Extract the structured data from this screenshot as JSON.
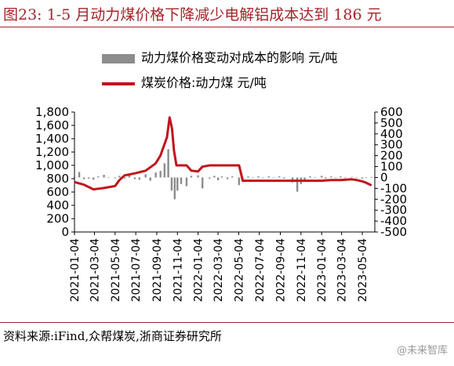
{
  "header": {
    "title": "图23:  1-5 月动力煤价格下降减少电解铝成本达到 186 元"
  },
  "footer": {
    "source": "资料来源:iFind,众帮煤炭,浙商证券研究所",
    "watermark": "@未来智库"
  },
  "colors": {
    "bar": "#8c8c8c",
    "line": "#c0141c",
    "title": "#a6242a"
  },
  "chart_data": {
    "type": "line",
    "series": [
      {
        "name": "动力煤价格变动对成本的影响 元/吨",
        "kind": "bar",
        "axis": "right",
        "x": [
          "2021-01-04",
          "2021-01-18",
          "2021-02-01",
          "2021-02-15",
          "2021-03-01",
          "2021-03-15",
          "2021-04-01",
          "2021-04-15",
          "2021-05-04",
          "2021-05-17",
          "2021-06-01",
          "2021-06-15",
          "2021-07-01",
          "2021-07-15",
          "2021-08-02",
          "2021-08-16",
          "2021-09-01",
          "2021-09-15",
          "2021-09-27",
          "2021-10-08",
          "2021-10-18",
          "2021-10-27",
          "2021-11-04",
          "2021-11-15",
          "2021-12-01",
          "2021-12-15",
          "2022-01-04",
          "2022-01-17",
          "2022-02-07",
          "2022-02-21",
          "2022-03-04",
          "2022-03-15",
          "2022-04-01",
          "2022-04-15",
          "2022-05-05",
          "2022-05-16",
          "2022-06-01",
          "2022-06-15",
          "2022-07-01",
          "2022-07-15",
          "2022-08-01",
          "2022-08-15",
          "2022-09-01",
          "2022-09-15",
          "2022-10-10",
          "2022-10-24",
          "2022-11-04",
          "2022-11-15",
          "2022-12-01",
          "2022-12-15",
          "2023-01-04",
          "2023-01-16",
          "2023-02-01",
          "2023-02-15",
          "2023-03-01",
          "2023-03-15",
          "2023-04-03",
          "2023-04-17",
          "2023-05-04",
          "2023-05-15",
          "2023-05-31"
        ],
        "values": [
          5,
          50,
          -15,
          -10,
          -20,
          10,
          25,
          -5,
          -8,
          15,
          -10,
          20,
          -15,
          -20,
          30,
          -30,
          45,
          60,
          130,
          260,
          -120,
          -200,
          -120,
          -60,
          -80,
          15,
          20,
          -100,
          -10,
          15,
          -25,
          10,
          -15,
          10,
          -70,
          -10,
          10,
          -5,
          10,
          -5,
          10,
          -5,
          10,
          -10,
          -45,
          -130,
          -60,
          -20,
          10,
          -5,
          15,
          -10,
          10,
          -5,
          10,
          -5,
          5,
          -5,
          -10,
          -5,
          5
        ]
      },
      {
        "name": "煤炭价格:动力煤 元/吨",
        "kind": "line",
        "axis": "left",
        "x": [
          "2021-01-04",
          "2021-02-01",
          "2021-03-01",
          "2021-03-15",
          "2021-04-01",
          "2021-05-04",
          "2021-05-17",
          "2021-06-01",
          "2021-07-01",
          "2021-08-02",
          "2021-09-01",
          "2021-09-15",
          "2021-10-04",
          "2021-10-12",
          "2021-10-19",
          "2021-10-25",
          "2021-11-01",
          "2021-11-08",
          "2021-11-15",
          "2021-12-01",
          "2021-12-15",
          "2022-01-04",
          "2022-01-17",
          "2022-02-07",
          "2022-03-04",
          "2022-04-01",
          "2022-05-05",
          "2022-05-16",
          "2022-06-01",
          "2022-07-01",
          "2022-08-01",
          "2022-09-01",
          "2022-10-10",
          "2022-11-04",
          "2022-12-01",
          "2023-01-04",
          "2023-02-01",
          "2023-03-01",
          "2023-04-03",
          "2023-04-17",
          "2023-05-04",
          "2023-05-15",
          "2023-05-31"
        ],
        "values": [
          750,
          710,
          640,
          650,
          660,
          690,
          780,
          850,
          880,
          920,
          1030,
          1150,
          1420,
          1720,
          1550,
          1220,
          1000,
          1000,
          1000,
          1000,
          920,
          910,
          980,
          1000,
          1000,
          1000,
          1000,
          770,
          770,
          770,
          770,
          770,
          770,
          770,
          770,
          770,
          780,
          780,
          790,
          780,
          760,
          740,
          700
        ]
      }
    ],
    "x_ticks": [
      "2021-01-04",
      "2021-03-04",
      "2021-05-04",
      "2021-07-04",
      "2021-09-04",
      "2021-11-04",
      "2022-01-04",
      "2022-03-04",
      "2022-05-04",
      "2022-07-04",
      "2022-09-04",
      "2022-11-04",
      "2023-01-04",
      "2023-03-04",
      "2023-05-04"
    ],
    "y_left": {
      "min": 0,
      "max": 1800,
      "ticks": [
        "0",
        "200",
        "400",
        "600",
        "800",
        "1,000",
        "1,200",
        "1,400",
        "1,600",
        "1,800"
      ]
    },
    "y_right": {
      "min": -500,
      "max": 600,
      "ticks": [
        "-500",
        "-400",
        "-300",
        "-200",
        "-100",
        "0",
        "100",
        "200",
        "300",
        "400",
        "500",
        "600"
      ]
    },
    "xlim": [
      "2021-01-04",
      "2023-06-10"
    ],
    "grid": false,
    "legend_position": "top"
  }
}
